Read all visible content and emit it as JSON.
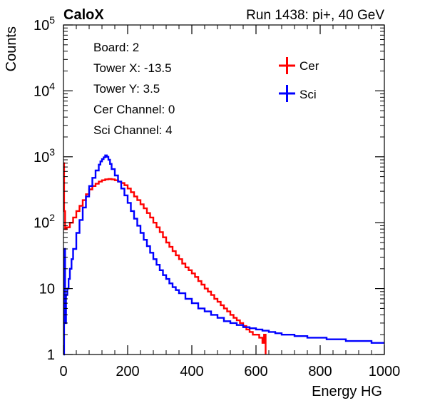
{
  "header": {
    "left_label": "CaloX",
    "right_label": "Run 1438: pi+, 40 GeV"
  },
  "info_box": {
    "lines": [
      "Board: 2",
      "Tower X: -13.5",
      "Tower Y: 3.5",
      "Cer Channel: 0",
      "Sci Channel: 4"
    ]
  },
  "colors": {
    "cer": "#ff0000",
    "sci": "#0000ff",
    "frame": "#000000"
  },
  "chart_data": {
    "type": "line",
    "title": "",
    "xlabel": "Energy HG",
    "ylabel": "Counts",
    "xlim": [
      0,
      1000
    ],
    "ylim": [
      1,
      100000
    ],
    "yscale": "log",
    "grid": false,
    "legend_position": "top-right",
    "x_ticks": [
      {
        "value": 0,
        "label": "0"
      },
      {
        "value": 200,
        "label": "200"
      },
      {
        "value": 400,
        "label": "400"
      },
      {
        "value": 600,
        "label": "600"
      },
      {
        "value": 800,
        "label": "800"
      },
      {
        "value": 1000,
        "label": "1000"
      }
    ],
    "y_ticks": [
      {
        "value": 1,
        "base": "1",
        "exp": ""
      },
      {
        "value": 10,
        "base": "10",
        "exp": ""
      },
      {
        "value": 100,
        "base": "10",
        "exp": "2"
      },
      {
        "value": 1000,
        "base": "10",
        "exp": "3"
      },
      {
        "value": 10000,
        "base": "10",
        "exp": "4"
      },
      {
        "value": 100000,
        "base": "10",
        "exp": "5"
      }
    ],
    "series": [
      {
        "name": "Cer",
        "color": "#ff0000",
        "x": [
          0,
          2,
          5,
          10,
          20,
          30,
          40,
          50,
          60,
          70,
          80,
          90,
          100,
          110,
          120,
          130,
          140,
          150,
          160,
          170,
          180,
          190,
          200,
          210,
          220,
          230,
          240,
          250,
          260,
          270,
          280,
          290,
          300,
          310,
          320,
          330,
          340,
          350,
          360,
          370,
          380,
          390,
          400,
          410,
          420,
          430,
          440,
          450,
          460,
          470,
          480,
          490,
          500,
          510,
          520,
          530,
          540,
          550,
          560,
          570,
          580,
          590,
          600,
          610,
          620,
          625,
          630
        ],
        "values": [
          800,
          150,
          80,
          85,
          100,
          120,
          150,
          180,
          220,
          270,
          320,
          360,
          390,
          420,
          440,
          455,
          460,
          455,
          440,
          420,
          400,
          370,
          330,
          290,
          250,
          220,
          190,
          165,
          140,
          120,
          100,
          85,
          72,
          60,
          50,
          43,
          37,
          32,
          28,
          24,
          21,
          19,
          17,
          15,
          13,
          11.5,
          10,
          9,
          8,
          7,
          6.3,
          5.6,
          5,
          4.5,
          4,
          3.6,
          3.3,
          3,
          2.7,
          2.4,
          2.2,
          2,
          2,
          1.8,
          1.5,
          2,
          1
        ]
      },
      {
        "name": "Sci",
        "color": "#0000ff",
        "x": [
          0,
          2,
          5,
          8,
          12,
          16,
          20,
          25,
          30,
          40,
          50,
          60,
          70,
          80,
          90,
          100,
          110,
          115,
          120,
          125,
          130,
          135,
          140,
          145,
          150,
          160,
          170,
          180,
          190,
          200,
          210,
          220,
          230,
          240,
          250,
          260,
          270,
          280,
          290,
          300,
          310,
          320,
          330,
          340,
          350,
          360,
          380,
          400,
          420,
          440,
          460,
          480,
          500,
          520,
          540,
          560,
          580,
          600,
          620,
          640,
          660,
          680,
          700,
          720,
          740,
          760,
          780,
          800,
          820,
          840,
          860,
          880,
          900,
          920,
          940,
          960,
          980,
          1000
        ],
        "values": [
          1,
          40,
          3,
          8,
          10,
          14,
          20,
          28,
          40,
          70,
          110,
          170,
          250,
          360,
          480,
          620,
          760,
          850,
          920,
          980,
          1050,
          1000,
          900,
          780,
          650,
          520,
          420,
          330,
          260,
          200,
          150,
          115,
          90,
          70,
          55,
          44,
          35,
          28,
          23,
          19,
          16,
          14,
          12,
          10.5,
          9.5,
          8.5,
          7,
          6,
          5,
          4.5,
          4,
          3.6,
          3.2,
          3,
          2.8,
          2.6,
          2.5,
          2.4,
          2.3,
          2.2,
          2.1,
          2,
          2,
          1.9,
          1.9,
          1.8,
          1.8,
          1.8,
          1.7,
          1.7,
          1.7,
          1.6,
          1.6,
          1.6,
          1.6,
          1.5,
          1.5,
          1.5
        ]
      }
    ]
  }
}
